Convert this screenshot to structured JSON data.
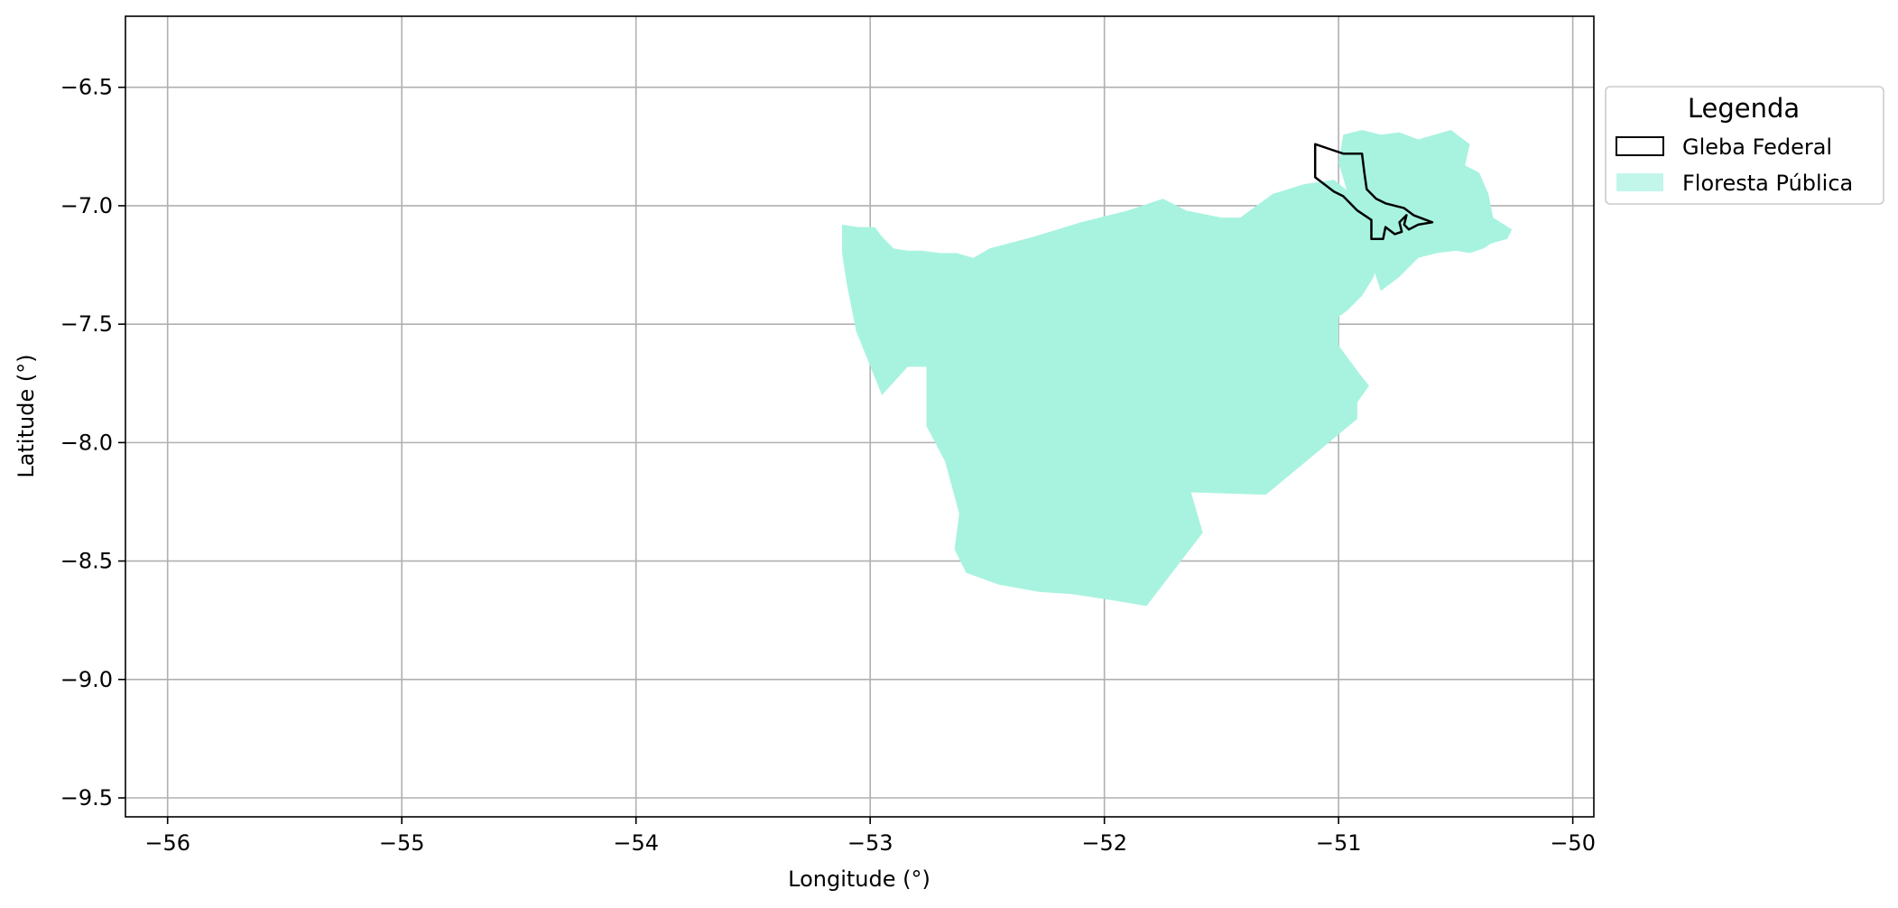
{
  "chart_data": {
    "type": "map",
    "xlabel": "Longitude (°)",
    "ylabel": "Latitude (°)",
    "xlim": [
      -56.18,
      -49.91
    ],
    "ylim": [
      -9.58,
      -6.2
    ],
    "xticks": [
      -56,
      -55,
      -54,
      -53,
      -52,
      -51,
      -50
    ],
    "xtick_labels": [
      "−56",
      "−55",
      "−54",
      "−53",
      "−52",
      "−51",
      "−50"
    ],
    "yticks": [
      -6.5,
      -7.0,
      -7.5,
      -8.0,
      -8.5,
      -9.0,
      -9.5
    ],
    "ytick_labels": [
      "−6.5",
      "−7.0",
      "−7.5",
      "−8.0",
      "−8.5",
      "−9.0",
      "−9.5"
    ],
    "grid": true,
    "legend": {
      "title": "Legenda",
      "placement": "outside-right-top",
      "entries": [
        {
          "label": "Gleba Federal",
          "style": "outline",
          "color": "#000000"
        },
        {
          "label": "Floresta Pública",
          "style": "fill",
          "color": "#a8f3e0"
        }
      ]
    },
    "layers": [
      {
        "name": "Floresta Pública",
        "color": "#a8f3e0",
        "polygons": [
          [
            [
              -53.12,
              -7.08
            ],
            [
              -53.05,
              -7.09
            ],
            [
              -52.98,
              -7.09
            ],
            [
              -52.95,
              -7.13
            ],
            [
              -52.9,
              -7.18
            ],
            [
              -52.84,
              -7.19
            ],
            [
              -52.78,
              -7.19
            ],
            [
              -52.7,
              -7.2
            ],
            [
              -52.63,
              -7.2
            ],
            [
              -52.56,
              -7.22
            ],
            [
              -52.49,
              -7.18
            ],
            [
              -52.3,
              -7.13
            ],
            [
              -52.1,
              -7.07
            ],
            [
              -51.9,
              -7.02
            ],
            [
              -51.75,
              -6.97
            ],
            [
              -51.65,
              -7.02
            ],
            [
              -51.5,
              -7.05
            ],
            [
              -51.42,
              -7.05
            ],
            [
              -51.35,
              -7.0
            ],
            [
              -51.28,
              -6.95
            ],
            [
              -51.15,
              -6.91
            ],
            [
              -51.02,
              -6.89
            ],
            [
              -50.92,
              -6.97
            ],
            [
              -50.85,
              -7.06
            ],
            [
              -50.82,
              -7.18
            ],
            [
              -50.85,
              -7.3
            ],
            [
              -50.9,
              -7.38
            ],
            [
              -50.96,
              -7.44
            ],
            [
              -51.0,
              -7.47
            ],
            [
              -51.0,
              -7.59
            ],
            [
              -50.91,
              -7.71
            ],
            [
              -50.87,
              -7.76
            ],
            [
              -50.92,
              -7.83
            ],
            [
              -50.92,
              -7.9
            ],
            [
              -51.31,
              -8.22
            ],
            [
              -51.63,
              -8.21
            ],
            [
              -51.58,
              -8.38
            ],
            [
              -51.82,
              -8.69
            ],
            [
              -52.0,
              -8.66
            ],
            [
              -52.14,
              -8.64
            ],
            [
              -52.28,
              -8.63
            ],
            [
              -52.45,
              -8.6
            ],
            [
              -52.59,
              -8.55
            ],
            [
              -52.64,
              -8.45
            ],
            [
              -52.62,
              -8.3
            ],
            [
              -52.68,
              -8.08
            ],
            [
              -52.76,
              -7.93
            ],
            [
              -52.76,
              -7.84
            ],
            [
              -52.76,
              -7.68
            ],
            [
              -52.84,
              -7.68
            ],
            [
              -52.95,
              -7.8
            ],
            [
              -53.06,
              -7.53
            ],
            [
              -53.1,
              -7.33
            ],
            [
              -53.12,
              -7.2
            ]
          ],
          [
            [
              -50.98,
              -6.7
            ],
            [
              -50.9,
              -6.68
            ],
            [
              -50.82,
              -6.7
            ],
            [
              -50.74,
              -6.69
            ],
            [
              -50.66,
              -6.72
            ],
            [
              -50.59,
              -6.7
            ],
            [
              -50.52,
              -6.68
            ],
            [
              -50.44,
              -6.74
            ],
            [
              -50.46,
              -6.83
            ],
            [
              -50.4,
              -6.86
            ],
            [
              -50.36,
              -6.95
            ],
            [
              -50.34,
              -7.05
            ],
            [
              -50.26,
              -7.1
            ],
            [
              -50.28,
              -7.14
            ],
            [
              -50.35,
              -7.16
            ],
            [
              -50.38,
              -7.18
            ],
            [
              -50.44,
              -7.2
            ],
            [
              -50.5,
              -7.19
            ],
            [
              -50.58,
              -7.2
            ],
            [
              -50.66,
              -7.22
            ],
            [
              -50.74,
              -7.3
            ],
            [
              -50.82,
              -7.36
            ],
            [
              -50.86,
              -7.24
            ],
            [
              -50.9,
              -7.1
            ],
            [
              -50.96,
              -6.95
            ],
            [
              -51.0,
              -6.82
            ]
          ]
        ]
      },
      {
        "name": "Gleba Federal",
        "color": "#000000",
        "polygons": [
          [
            [
              -51.1,
              -6.74
            ],
            [
              -51.04,
              -6.76
            ],
            [
              -50.98,
              -6.78
            ],
            [
              -50.9,
              -6.78
            ],
            [
              -50.89,
              -6.86
            ],
            [
              -50.88,
              -6.93
            ],
            [
              -50.84,
              -6.97
            ],
            [
              -50.8,
              -6.99
            ],
            [
              -50.72,
              -7.01
            ],
            [
              -50.68,
              -7.04
            ],
            [
              -50.6,
              -7.07
            ],
            [
              -50.66,
              -7.08
            ],
            [
              -50.7,
              -7.1
            ],
            [
              -50.72,
              -7.08
            ],
            [
              -50.71,
              -7.04
            ],
            [
              -50.74,
              -7.07
            ],
            [
              -50.73,
              -7.11
            ],
            [
              -50.76,
              -7.12
            ],
            [
              -50.8,
              -7.09
            ],
            [
              -50.81,
              -7.14
            ],
            [
              -50.86,
              -7.14
            ],
            [
              -50.86,
              -7.06
            ],
            [
              -50.92,
              -7.02
            ],
            [
              -50.98,
              -6.96
            ],
            [
              -51.02,
              -6.94
            ],
            [
              -51.1,
              -6.88
            ]
          ]
        ]
      }
    ]
  }
}
